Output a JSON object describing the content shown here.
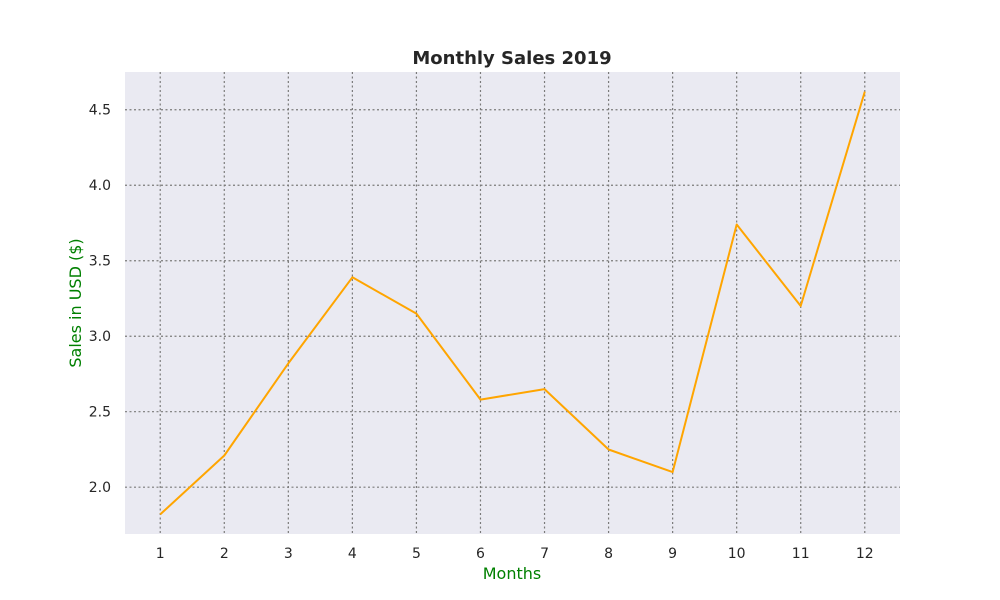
{
  "chart_data": {
    "type": "line",
    "title": "Monthly Sales 2019",
    "xlabel": "Months",
    "ylabel": "Sales in USD ($)",
    "x": [
      1,
      2,
      3,
      4,
      5,
      6,
      7,
      8,
      9,
      10,
      11,
      12
    ],
    "x_tick_labels": [
      "1",
      "2",
      "3",
      "4",
      "5",
      "6",
      "7",
      "8",
      "9",
      "10",
      "11",
      "12"
    ],
    "y_ticks": [
      2.0,
      2.5,
      3.0,
      3.5,
      4.0,
      4.5
    ],
    "y_tick_labels": [
      "2.0",
      "2.5",
      "3.0",
      "3.5",
      "4.0",
      "4.5"
    ],
    "xlim": [
      0.45,
      12.55
    ],
    "ylim": [
      1.69,
      4.75
    ],
    "grid": true,
    "series": [
      {
        "values": [
          1.82,
          2.21,
          2.82,
          3.39,
          3.15,
          2.58,
          2.65,
          2.25,
          2.1,
          3.74,
          3.2,
          4.62
        ],
        "color": "#ffa500"
      }
    ],
    "colors": {
      "plot_background": "#eaeaf2",
      "grid": "#7a7a7a",
      "axis_label": "#008000",
      "text": "#262626"
    }
  }
}
